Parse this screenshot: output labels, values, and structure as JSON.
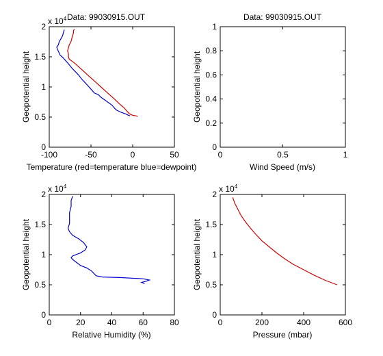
{
  "chart_data": [
    {
      "type": "line",
      "title": "Data: 99030915.OUT",
      "xlabel": "Temperature (red=temperature blue=dewpoint)",
      "ylabel": "Geopotential height",
      "xlim": [
        -100,
        50
      ],
      "ylim": [
        0,
        20000
      ],
      "x_ticks": [
        -100,
        -50,
        0,
        50
      ],
      "x_tick_labels": [
        "-100",
        "-50",
        "0",
        "50"
      ],
      "y_ticks": [
        0,
        5000,
        10000,
        15000,
        20000
      ],
      "y_tick_labels": [
        "0",
        "0.5",
        "1",
        "1.5",
        "2"
      ],
      "y_exponent": "x 10",
      "y_exponent_power": "4",
      "series": [
        {
          "color": "#cc0000",
          "points": [
            [
              6,
              5100
            ],
            [
              4,
              5200
            ],
            [
              0,
              5300
            ],
            [
              -4,
              5550
            ],
            [
              -7,
              6000
            ],
            [
              -10,
              6500
            ],
            [
              -16,
              7200
            ],
            [
              -22,
              8000
            ],
            [
              -30,
              9000
            ],
            [
              -38,
              10000
            ],
            [
              -46,
              11000
            ],
            [
              -54,
              12000
            ],
            [
              -62,
              13000
            ],
            [
              -70,
              14000
            ],
            [
              -76,
              14600
            ],
            [
              -77,
              15000
            ],
            [
              -77,
              15500
            ],
            [
              -78,
              16000
            ],
            [
              -77,
              16500
            ],
            [
              -76,
              17000
            ],
            [
              -74,
              17500
            ],
            [
              -73,
              18000
            ],
            [
              -72,
              18500
            ],
            [
              -71,
              19000
            ],
            [
              -71,
              19300
            ],
            [
              -70,
              19600
            ]
          ]
        },
        {
          "color": "#0000cc",
          "points": [
            [
              -3,
              5200
            ],
            [
              -5,
              5300
            ],
            [
              -8,
              5500
            ],
            [
              -14,
              5800
            ],
            [
              -20,
              6200
            ],
            [
              -25,
              7000
            ],
            [
              -33,
              7800
            ],
            [
              -38,
              8300
            ],
            [
              -41,
              8700
            ],
            [
              -46,
              9000
            ],
            [
              -51,
              9800
            ],
            [
              -57,
              10700
            ],
            [
              -61,
              11300
            ],
            [
              -65,
              12000
            ],
            [
              -72,
              13000
            ],
            [
              -78,
              14000
            ],
            [
              -83,
              14800
            ],
            [
              -87,
              15300
            ],
            [
              -90,
              16200
            ],
            [
              -91,
              16600
            ],
            [
              -89,
              17000
            ],
            [
              -88,
              17500
            ],
            [
              -86,
              18000
            ],
            [
              -84,
              18500
            ],
            [
              -83,
              19000
            ],
            [
              -82,
              19500
            ]
          ]
        }
      ]
    },
    {
      "type": "line",
      "title": "Data: 99030915.OUT",
      "xlabel": "Wind Speed (m/s)",
      "ylabel": "Geopotential height",
      "xlim": [
        0,
        1
      ],
      "ylim": [
        0,
        1
      ],
      "x_ticks": [
        0,
        0.5,
        1
      ],
      "x_tick_labels": [
        "0",
        "0.5",
        "1"
      ],
      "y_ticks": [
        0,
        0.2,
        0.4,
        0.6,
        0.8,
        1
      ],
      "y_tick_labels": [
        "0",
        "0.2",
        "0.4",
        "0.6",
        "0.8",
        "1"
      ],
      "series": []
    },
    {
      "type": "line",
      "title": "",
      "xlabel": "Relative Humidity (%)",
      "ylabel": "Geopotential height",
      "xlim": [
        0,
        80
      ],
      "ylim": [
        0,
        20000
      ],
      "x_ticks": [
        0,
        20,
        40,
        60,
        80
      ],
      "x_tick_labels": [
        "0",
        "20",
        "40",
        "60",
        "80"
      ],
      "y_ticks": [
        0,
        5000,
        10000,
        15000,
        20000
      ],
      "y_tick_labels": [
        "0",
        "0.5",
        "1",
        "1.5",
        "2"
      ],
      "y_exponent": "x 10",
      "y_exponent_power": "4",
      "series": [
        {
          "color": "#0000cc",
          "points": [
            [
              61,
              5200
            ],
            [
              59,
              5400
            ],
            [
              62,
              5600
            ],
            [
              64,
              5800
            ],
            [
              60,
              6000
            ],
            [
              45,
              6200
            ],
            [
              34,
              6300
            ],
            [
              30,
              6500
            ],
            [
              27,
              7300
            ],
            [
              24,
              7800
            ],
            [
              20,
              8200
            ],
            [
              17,
              8800
            ],
            [
              15,
              9200
            ],
            [
              14,
              9500
            ],
            [
              15,
              9800
            ],
            [
              17,
              10000
            ],
            [
              20,
              10300
            ],
            [
              23,
              10800
            ],
            [
              24,
              11300
            ],
            [
              22,
              12000
            ],
            [
              19,
              12600
            ],
            [
              15,
              13200
            ],
            [
              13,
              13800
            ],
            [
              12,
              14400
            ],
            [
              13,
              15200
            ],
            [
              13,
              16000
            ],
            [
              13,
              17000
            ],
            [
              14,
              18000
            ],
            [
              14,
              19000
            ],
            [
              15,
              19700
            ]
          ]
        }
      ]
    },
    {
      "type": "line",
      "title": "",
      "xlabel": "Pressure (mbar)",
      "ylabel": "Geopotential height",
      "xlim": [
        0,
        600
      ],
      "ylim": [
        0,
        20000
      ],
      "x_ticks": [
        0,
        200,
        400,
        600
      ],
      "x_tick_labels": [
        "0",
        "200",
        "400",
        "600"
      ],
      "y_ticks": [
        0,
        5000,
        10000,
        15000,
        20000
      ],
      "y_tick_labels": [
        "0",
        "0.5",
        "1",
        "1.5",
        "2"
      ],
      "y_exponent": "x 10",
      "y_exponent_power": "4",
      "series": [
        {
          "color": "#cc0000",
          "points": [
            [
              60,
              19500
            ],
            [
              70,
              18500
            ],
            [
              85,
              17500
            ],
            [
              100,
              16500
            ],
            [
              120,
              15500
            ],
            [
              145,
              14400
            ],
            [
              170,
              13400
            ],
            [
              200,
              12300
            ],
            [
              235,
              11300
            ],
            [
              270,
              10300
            ],
            [
              310,
              9300
            ],
            [
              350,
              8400
            ],
            [
              400,
              7500
            ],
            [
              450,
              6600
            ],
            [
              500,
              5800
            ],
            [
              560,
              5000
            ]
          ]
        }
      ]
    }
  ]
}
